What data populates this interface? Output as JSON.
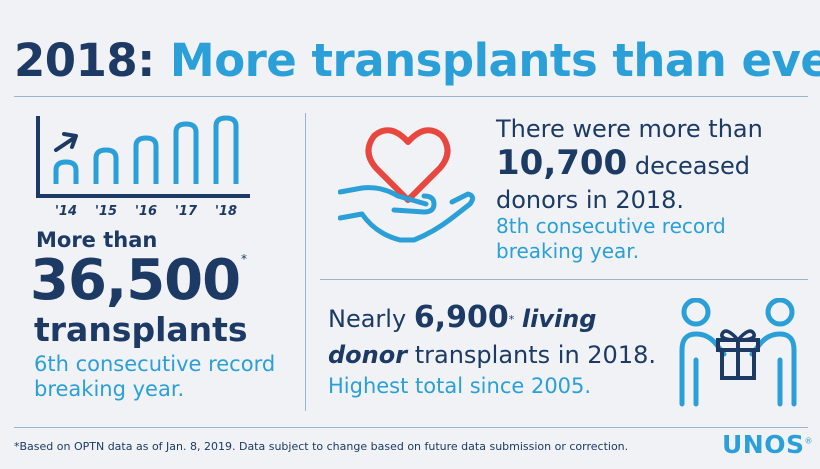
{
  "title": {
    "year": "2018:",
    "text": "More transplants than ever"
  },
  "left": {
    "chart_labels": [
      "'14",
      "'15",
      "'16",
      "'17",
      "'18"
    ],
    "more_than": "More than",
    "number": "36,500",
    "asterisk": "*",
    "unit": "transplants",
    "subtitle": "6th consecutive record breaking year."
  },
  "donors": {
    "line1": "There were more than",
    "number": "10,700",
    "line2": "deceased",
    "line3": "donors in 2018.",
    "subtitle": "8th consecutive record breaking year."
  },
  "living": {
    "prefix": "Nearly",
    "number": "6,900",
    "asterisk": "*",
    "emph1": "living",
    "emph2": "donor",
    "suffix": "transplants in 2018.",
    "subtitle": "Highest total since 2005."
  },
  "footnote": "*Based on OPTN data as of Jan. 8, 2019. Data subject to change based on future data submission or correction.",
  "logo": "UNOS",
  "logo_tm": "®",
  "colors": {
    "navy": "#1c3a64",
    "blue": "#2a9fd8",
    "red": "#e8473f",
    "background": "#f0f2f6"
  }
}
